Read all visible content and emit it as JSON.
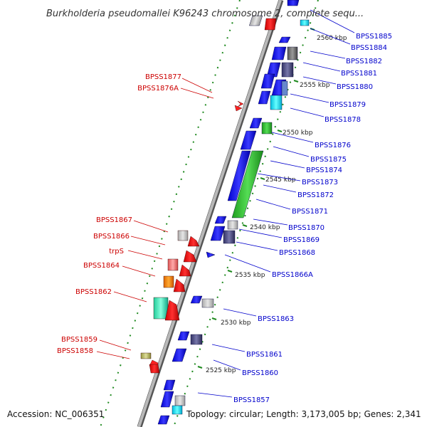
{
  "title": "Burkholderia pseudomallei K96243 chromosome 2, complete sequ...",
  "footer": {
    "accession": "Accession: NC_006351",
    "topology": "Topology: circular; Length: 3,173,005 bp; Genes: 2,341"
  },
  "colors": {
    "right_label": "#0000cc",
    "left_label": "#cc0000",
    "backbone": "#8c8c8c",
    "tick": "#1f8a1f",
    "forward_gene": "#0000ff",
    "reverse_gene": "#ff0000"
  },
  "scale_labels": [
    "2560 kbp",
    "2555 kbp",
    "2550 kbp",
    "2545 kbp",
    "2540 kbp",
    "2535 kbp",
    "2530 kbp",
    "2525 kbp"
  ],
  "right_genes": [
    "BPSS1885",
    "BPSS1884",
    "BPSS1882",
    "BPSS1881",
    "BPSS1880",
    "BPSS1879",
    "BPSS1878",
    "BPSS1876",
    "BPSS1875",
    "BPSS1874",
    "BPSS1873",
    "BPSS1872",
    "BPSS1871",
    "BPSS1870",
    "BPSS1869",
    "BPSS1868",
    "BPSS1866A",
    "BPSS1863",
    "BPSS1861",
    "BPSS1860",
    "BPSS1857"
  ],
  "left_genes": [
    "BPSS1877",
    "BPSS1876A",
    "BPSS1867",
    "BPSS1866",
    "trpS",
    "BPSS1864",
    "BPSS1862",
    "BPSS1859",
    "BPSS1858"
  ]
}
